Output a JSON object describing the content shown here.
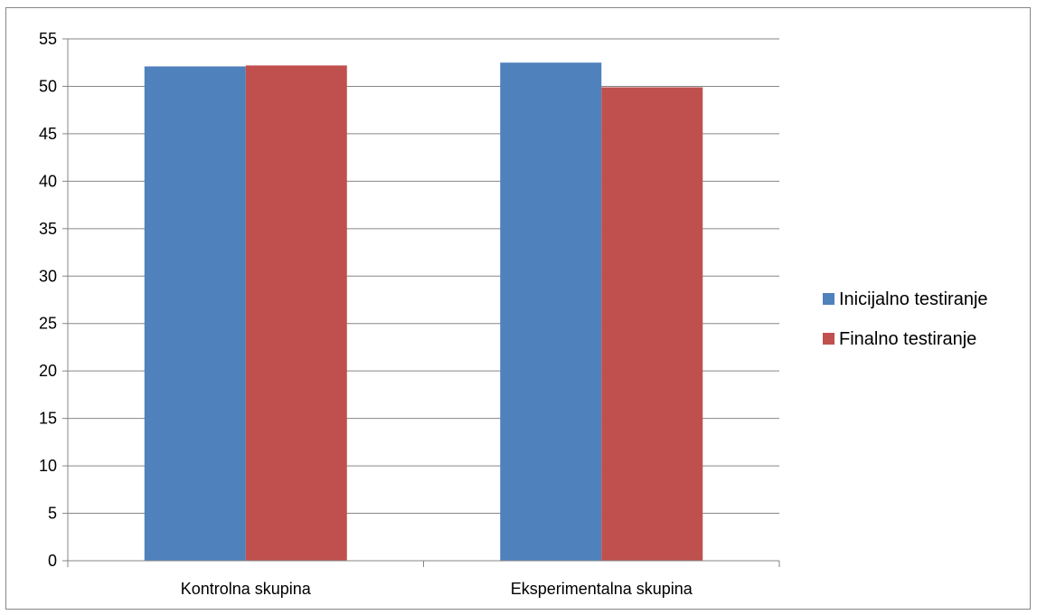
{
  "chart_data": {
    "type": "bar",
    "categories": [
      "Kontrolna skupina",
      "Eksperimentalna skupina"
    ],
    "series": [
      {
        "name": "Inicijalno testiranje",
        "values": [
          52.1,
          52.5
        ],
        "color": "#4f81bd"
      },
      {
        "name": "Finalno testiranje",
        "values": [
          52.2,
          49.9
        ],
        "color": "#c0504d"
      }
    ],
    "ylim": [
      0,
      55
    ],
    "yticks": [
      0,
      5,
      10,
      15,
      20,
      25,
      30,
      35,
      40,
      45,
      50,
      55
    ],
    "grid": true,
    "legend_position": "right"
  }
}
